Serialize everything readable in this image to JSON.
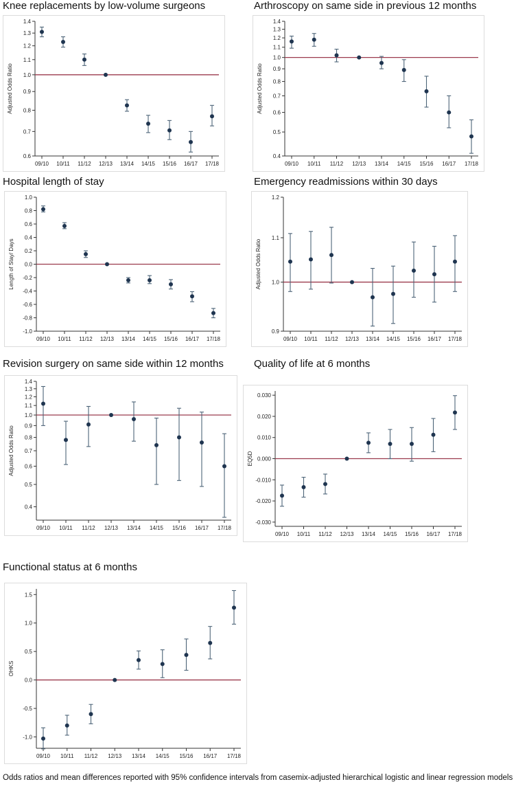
{
  "colors": {
    "refline": "#9b3a4d",
    "marker": "#1f3550",
    "whisker": "#4d6478",
    "axis": "#333333"
  },
  "caption": "Odds ratios and mean differences reported with 95% confidence intervals from casemix-adjusted hierarchical logistic and linear regression models",
  "chart_data": [
    {
      "type": "scatter",
      "title": "Knee replacements by low-volume surgeons",
      "ylabel": "Adjusted Odds Ratio",
      "scale": "log",
      "ylim": [
        0.6,
        1.4
      ],
      "yticks": [
        0.6,
        0.7,
        0.8,
        0.9,
        1.0,
        1.1,
        1.2,
        1.3,
        1.4
      ],
      "ytick_labels": [
        "0.6",
        "0.7",
        "0.8",
        "0.9",
        "1.0",
        "1.1",
        "1.2",
        "1.3",
        "1.4"
      ],
      "refline": 1.0,
      "categories": [
        "09/10",
        "10/11",
        "11/12",
        "12/13",
        "13/14",
        "14/15",
        "15/16",
        "16/17",
        "17/18"
      ],
      "values": [
        1.31,
        1.23,
        1.1,
        1.0,
        0.825,
        0.735,
        0.705,
        0.655,
        0.77
      ],
      "lower": [
        1.27,
        1.19,
        1.06,
        null,
        0.795,
        0.695,
        0.665,
        0.615,
        0.725
      ],
      "upper": [
        1.35,
        1.27,
        1.14,
        null,
        0.855,
        0.775,
        0.75,
        0.7,
        0.825
      ],
      "grid": false
    },
    {
      "type": "scatter",
      "title": "Arthroscopy on same side in previous 12 months",
      "ylabel": "Adjusted Odds Ratio",
      "scale": "log",
      "ylim": [
        0.4,
        1.4
      ],
      "yticks": [
        0.4,
        0.5,
        0.6,
        0.7,
        0.8,
        0.9,
        1.0,
        1.1,
        1.2,
        1.3,
        1.4
      ],
      "ytick_labels": [
        "0.4",
        "0.5",
        "0.6",
        "0.7",
        "0.8",
        "0.9",
        "1.0",
        "1.1",
        "1.2",
        "1.3",
        "1.4"
      ],
      "refline": 1.0,
      "categories": [
        "09/10",
        "10/11",
        "11/12",
        "12/13",
        "13/14",
        "14/15",
        "15/16",
        "16/17",
        "17/18"
      ],
      "values": [
        1.16,
        1.18,
        1.02,
        1.0,
        0.95,
        0.89,
        0.73,
        0.6,
        0.48
      ],
      "lower": [
        1.09,
        1.11,
        0.96,
        null,
        0.9,
        0.8,
        0.63,
        0.52,
        0.41
      ],
      "upper": [
        1.22,
        1.25,
        1.08,
        null,
        1.01,
        0.98,
        0.84,
        0.7,
        0.56
      ],
      "grid": false
    },
    {
      "type": "scatter",
      "title": "Hospital length of stay",
      "ylabel": "Length of Stay/ Days",
      "scale": "linear",
      "ylim": [
        -1.0,
        1.0
      ],
      "yticks": [
        -1.0,
        -0.8,
        -0.6,
        -0.4,
        -0.2,
        0.0,
        0.2,
        0.4,
        0.6,
        0.8,
        1.0
      ],
      "ytick_labels": [
        "-1.0",
        "-0.8",
        "-0.6",
        "-0.4",
        "-0.2",
        "0.0",
        "0.2",
        "0.4",
        "0.6",
        "0.8",
        "1.0"
      ],
      "refline": 0.0,
      "categories": [
        "09/10",
        "10/11",
        "11/12",
        "12/13",
        "13/14",
        "14/15",
        "15/16",
        "16/17",
        "17/18"
      ],
      "values": [
        0.82,
        0.57,
        0.15,
        0.0,
        -0.24,
        -0.24,
        -0.3,
        -0.48,
        -0.73
      ],
      "lower": [
        0.78,
        0.53,
        0.1,
        null,
        -0.28,
        -0.29,
        -0.37,
        -0.56,
        -0.8
      ],
      "upper": [
        0.87,
        0.62,
        0.2,
        null,
        -0.2,
        -0.17,
        -0.23,
        -0.41,
        -0.66
      ],
      "grid": false
    },
    {
      "type": "scatter",
      "title": "Emergency readmissions within 30 days",
      "ylabel": "Adjusted Odds Ratio",
      "scale": "log",
      "ylim": [
        0.9,
        1.2
      ],
      "yticks": [
        0.9,
        1.0,
        1.1,
        1.2
      ],
      "ytick_labels": [
        "0.9",
        "1.0",
        "1.1",
        "1.2"
      ],
      "refline": 1.0,
      "categories": [
        "09/10",
        "10/11",
        "11/12",
        "12/13",
        "13/14",
        "14/15",
        "15/16",
        "16/17",
        "17/18"
      ],
      "values": [
        1.045,
        1.05,
        1.06,
        1.0,
        0.968,
        0.975,
        1.025,
        1.017,
        1.045
      ],
      "lower": [
        0.98,
        0.985,
        0.998,
        null,
        0.91,
        0.915,
        0.968,
        0.958,
        0.98
      ],
      "upper": [
        1.11,
        1.115,
        1.125,
        null,
        1.03,
        1.035,
        1.09,
        1.08,
        1.105
      ],
      "grid": false
    },
    {
      "type": "scatter",
      "title": "Revision surgery on same side within 12 months",
      "ylabel": "Adjusted Odds Ratio",
      "scale": "log",
      "ylim": [
        0.35,
        1.4
      ],
      "yticks": [
        0.4,
        0.5,
        0.6,
        0.7,
        0.8,
        0.9,
        1.0,
        1.1,
        1.2,
        1.3,
        1.4
      ],
      "ytick_labels": [
        "0.4",
        "0.5",
        "0.6",
        "0.7",
        "0.8",
        "0.9",
        "1.0",
        "1.1",
        "1.2",
        "1.3",
        "1.4"
      ],
      "refline": 1.0,
      "categories": [
        "09/10",
        "10/11",
        "11/12",
        "12/13",
        "13/14",
        "14/15",
        "15/16",
        "16/17",
        "17/18"
      ],
      "values": [
        1.12,
        0.78,
        0.91,
        1.0,
        0.96,
        0.74,
        0.8,
        0.76,
        0.6
      ],
      "lower": [
        0.9,
        0.61,
        0.73,
        null,
        0.77,
        0.5,
        0.52,
        0.49,
        0.36
      ],
      "upper": [
        1.33,
        0.94,
        1.09,
        null,
        1.14,
        0.97,
        1.07,
        1.03,
        0.83
      ],
      "grid": false
    },
    {
      "type": "scatter",
      "title": "Quality of life at 6 months",
      "ylabel": "EQ5D",
      "scale": "linear",
      "ylim": [
        -0.032,
        0.032
      ],
      "yticks": [
        -0.03,
        -0.02,
        -0.01,
        0.0,
        0.01,
        0.02,
        0.03
      ],
      "ytick_labels": [
        "-0.030",
        "-0.020",
        "-0.010",
        "0.000",
        "0.010",
        "0.020",
        "0.030"
      ],
      "refline": 0.0,
      "categories": [
        "09/10",
        "10/11",
        "11/12",
        "12/13",
        "13/14",
        "14/15",
        "15/16",
        "16/17",
        "17/18"
      ],
      "values": [
        -0.0175,
        -0.0135,
        -0.012,
        0.0,
        0.0075,
        0.007,
        0.007,
        0.0113,
        0.0218
      ],
      "lower": [
        -0.0225,
        -0.0182,
        -0.0167,
        null,
        0.0028,
        0.0,
        -0.0012,
        0.0033,
        0.0138
      ],
      "upper": [
        -0.0125,
        -0.0088,
        -0.0073,
        null,
        0.0122,
        0.0138,
        0.0147,
        0.019,
        0.0298
      ],
      "grid": false
    },
    {
      "type": "scatter",
      "title": "Functional status at 6 months",
      "ylabel": "OHKS",
      "scale": "linear",
      "ylim": [
        -1.2,
        1.6
      ],
      "yticks": [
        -1.0,
        -0.5,
        0.0,
        0.5,
        1.0,
        1.5
      ],
      "ytick_labels": [
        "-1.0",
        "-0.5",
        "0.0",
        "0.5",
        "1.0",
        "1.5"
      ],
      "refline": 0.0,
      "categories": [
        "09/10",
        "10/11",
        "11/12",
        "12/13",
        "13/14",
        "14/15",
        "15/16",
        "16/17",
        "17/18"
      ],
      "values": [
        -1.03,
        -0.8,
        -0.6,
        0.0,
        0.35,
        0.28,
        0.44,
        0.65,
        1.27
      ],
      "lower": [
        -1.21,
        -0.97,
        -0.77,
        null,
        0.19,
        0.04,
        0.17,
        0.37,
        0.98
      ],
      "upper": [
        -0.84,
        -0.62,
        -0.43,
        null,
        0.51,
        0.53,
        0.72,
        0.94,
        1.57
      ],
      "grid": false
    }
  ]
}
